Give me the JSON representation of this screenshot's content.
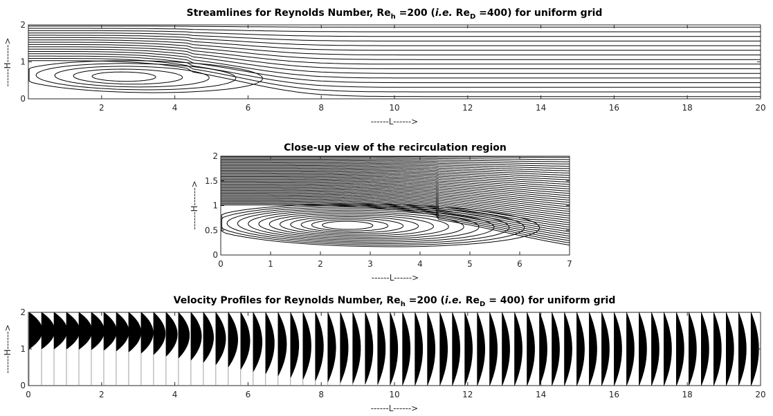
{
  "chart_data": [
    {
      "type": "streamline",
      "title_parts": [
        "Streamlines for Reynolds Number, Re",
        "h",
        " =200 (",
        "i.e.",
        " Re",
        "D",
        " =400) for uniform grid"
      ],
      "xlabel": "------L------>",
      "ylabel": "------H------>",
      "xlim": [
        0,
        20
      ],
      "ylim": [
        0,
        2
      ],
      "xticks": [
        "2",
        "4",
        "6",
        "8",
        "10",
        "12",
        "14",
        "16",
        "18",
        "20"
      ],
      "yticks": [
        "0",
        "1",
        "2"
      ],
      "recirculation": {
        "center_x": 2.5,
        "center_y": 0.6,
        "reattachment_x": 6.2,
        "separation_height": 1.0
      },
      "streamline_levels": 16
    },
    {
      "type": "streamline",
      "title": "Close-up view of the recirculation region",
      "xlabel": "------L------>",
      "ylabel": "------H------>",
      "xlim": [
        0,
        7
      ],
      "ylim": [
        0,
        2
      ],
      "xticks": [
        "0",
        "1",
        "2",
        "3",
        "4",
        "5",
        "6",
        "7"
      ],
      "yticks": [
        "0",
        "0.5",
        "1",
        "1.5",
        "2"
      ],
      "recirculation": {
        "center_x": 2.5,
        "center_y": 0.6,
        "reattachment_x": 6.2,
        "separation_height": 1.0
      },
      "streamline_levels": 40
    },
    {
      "type": "velocity_profiles",
      "title_parts": [
        "Velocity Profiles for Reynolds Number, Re",
        "h",
        " =200 (",
        "i.e.",
        " Re",
        "D",
        " = 400) for uniform grid"
      ],
      "xlabel": "------L------>",
      "ylabel": "------H------>",
      "xlim": [
        0,
        20
      ],
      "ylim": [
        0,
        2
      ],
      "xticks": [
        "0",
        "2",
        "4",
        "6",
        "8",
        "10",
        "12",
        "14",
        "16",
        "18",
        "20"
      ],
      "yticks": [
        "0",
        "1",
        "2"
      ],
      "profile_spacing": 0.34,
      "profile_count": 59,
      "inlet_profile": "parabolic in upper half (1 to 2)",
      "outlet_profile": "parabolic over full height (0 to 2)"
    }
  ]
}
